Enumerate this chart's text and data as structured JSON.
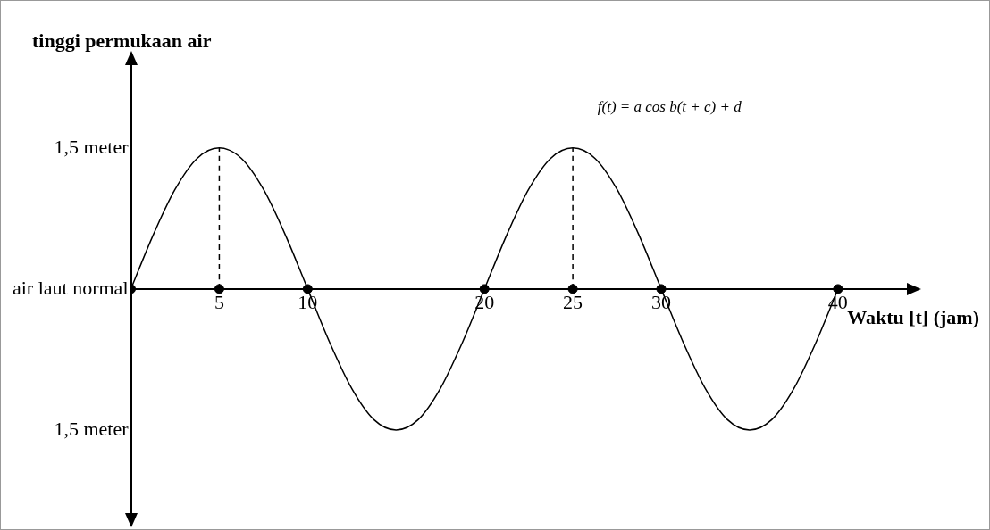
{
  "chart_data": {
    "type": "line",
    "ylabel": "tinggi permukaan air",
    "xlabel": "Waktu [t] (jam)",
    "annotations": [
      "f(t) = a cos b(t + c) + d"
    ],
    "xlim": [
      0,
      44
    ],
    "xticks": [
      5,
      10,
      20,
      25,
      30,
      40
    ],
    "ylim": [
      -2.4,
      2.4
    ],
    "yticks": [
      {
        "value": 1.5,
        "label": "1,5 meter"
      },
      {
        "value": 0,
        "label": "air laut normal"
      },
      {
        "value": -1.5,
        "label": "1,5 meter"
      }
    ],
    "grid": false,
    "legend": false,
    "series": [
      {
        "type": "line",
        "marker": "none",
        "line_style": "solid",
        "color": "#000000",
        "x": [
          0,
          1.25,
          2.5,
          3.75,
          5,
          6.25,
          7.5,
          8.75,
          10,
          11.25,
          12.5,
          13.75,
          15,
          16.25,
          17.5,
          18.75,
          20,
          21.25,
          22.5,
          23.75,
          25,
          26.25,
          27.5,
          28.75,
          30,
          31.25,
          32.5,
          33.75,
          35,
          36.25,
          37.5,
          38.75,
          40
        ],
        "values": [
          0,
          0.57,
          1.06,
          1.39,
          1.5,
          1.39,
          1.06,
          0.57,
          0,
          -0.57,
          -1.06,
          -1.39,
          -1.5,
          -1.39,
          -1.06,
          -0.57,
          0,
          0.57,
          1.06,
          1.39,
          1.5,
          1.39,
          1.06,
          0.57,
          0,
          -0.57,
          -1.06,
          -1.39,
          -1.5,
          -1.39,
          -1.06,
          -0.57,
          0
        ]
      },
      {
        "type": "line",
        "marker": "none",
        "line_style": "dashed",
        "color": "#000000",
        "x": [
          5,
          5
        ],
        "values": [
          0,
          1.5
        ]
      },
      {
        "type": "line",
        "marker": "none",
        "line_style": "dashed",
        "color": "#000000",
        "x": [
          25,
          25
        ],
        "values": [
          0,
          1.5
        ]
      },
      {
        "type": "scatter",
        "marker": "circle",
        "color": "#000000",
        "x": [
          0,
          5,
          10,
          20,
          25,
          30,
          40
        ],
        "values": [
          0,
          0,
          0,
          0,
          0,
          0,
          0
        ]
      }
    ]
  }
}
